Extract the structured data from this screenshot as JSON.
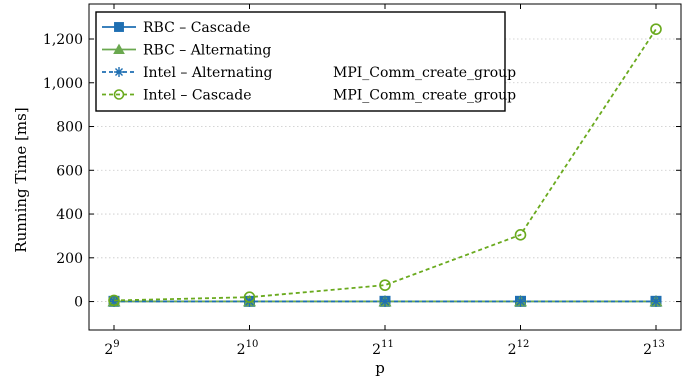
{
  "chart_data": {
    "type": "line",
    "xlabel": "p",
    "ylabel": "Running Time [ms]",
    "x_scale": "log2",
    "x": [
      512,
      1024,
      2048,
      4096,
      8192
    ],
    "x_tick_labels": [
      {
        "base": "2",
        "exp": "9"
      },
      {
        "base": "2",
        "exp": "10"
      },
      {
        "base": "2",
        "exp": "11"
      },
      {
        "base": "2",
        "exp": "12"
      },
      {
        "base": "2",
        "exp": "13"
      }
    ],
    "y_ticks": [
      0,
      200,
      400,
      600,
      800,
      1000,
      1200
    ],
    "y_tick_labels": [
      "0",
      "200",
      "400",
      "600",
      "800",
      "1,000",
      "1,200"
    ],
    "ylim": [
      -130,
      1360
    ],
    "grid": "y-dotted",
    "legend_position": "top-left",
    "series": [
      {
        "name": "RBC – Cascade",
        "label_main": "RBC – Cascade",
        "label_extra": "",
        "color": "#1f6fb2",
        "marker": "square",
        "dash": "solid",
        "values": [
          1,
          1,
          1,
          1,
          1
        ]
      },
      {
        "name": "RBC – Alternating",
        "label_main": "RBC – Alternating",
        "label_extra": "",
        "color": "#6aa84f",
        "marker": "triangle",
        "dash": "solid",
        "values": [
          1,
          1,
          1,
          1,
          1
        ]
      },
      {
        "name": "Intel – Alternating MPI_Comm_create_group",
        "label_main": "Intel – Alternating",
        "label_extra": "MPI_Comm_create_group",
        "color": "#1f6fb2",
        "marker": "star",
        "dash": "dashed",
        "values": [
          1,
          1,
          1,
          1,
          1
        ]
      },
      {
        "name": "Intel – Cascade MPI_Comm_create_group",
        "label_main": "Intel – Cascade",
        "label_extra": "MPI_Comm_create_group",
        "color": "#6aaa1e",
        "marker": "circle",
        "dash": "dashed",
        "values": [
          5,
          20,
          75,
          305,
          1245
        ]
      }
    ]
  }
}
